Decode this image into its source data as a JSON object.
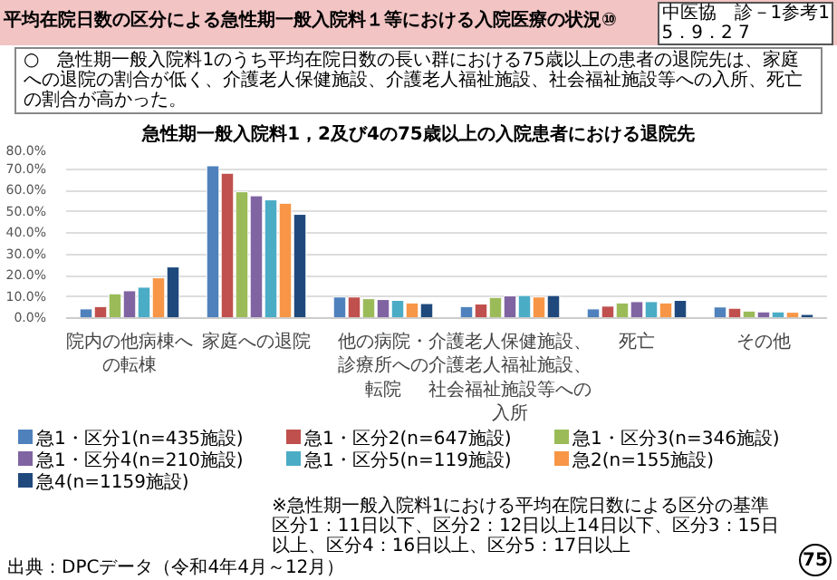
{
  "chart_data": {
    "type": "bar",
    "title": "平均在院日数の区分による急性期一般入院料１等における入院医療の状況⑩",
    "subtitle": "急性期一般入院料1，2及び4の75歳以上の入院患者における退院先",
    "annotations": [
      "中医協　診－1参考1\n5．9．2 7",
      "○　急性期一般入院料1のうち平均在院日数の長い群における75歳以上の患者の退院先は、家庭への退院の割合が低く、介護老人保健施設、介護老人福祉施設、社会福祉施設等への入所、死亡の割合が高かった。",
      "※急性期一般入院料1における平均在院日数による区分の基準",
      "区分1：11日以下、区分2：12日以上14日以下、区分3：15日以上、区分4：16日以上、区分5：17日以上",
      "出典：DPCデータ（令和4年4月～12月）",
      "75"
    ],
    "categories": [
      "院内の他病棟への転棟",
      "家庭への退院",
      "他の病院・診療所への転院",
      "介護老人保健施設、介護老人福祉施設、社会福祉施設等への入所",
      "死亡",
      "その他"
    ],
    "series": [
      {
        "name": "急1・区分1(n=435施設)",
        "color": "#4f81bd",
        "values": [
          4.3,
          71.5,
          9.9,
          5.4,
          4.3,
          5.2
        ]
      },
      {
        "name": "急1・区分2(n=647施設)",
        "color": "#c0504d",
        "values": [
          5.4,
          68.0,
          9.9,
          6.6,
          5.6,
          4.6
        ]
      },
      {
        "name": "急1・区分3(n=346施設)",
        "color": "#9bbb59",
        "values": [
          11.4,
          59.3,
          9.1,
          9.7,
          7.1,
          3.3
        ]
      },
      {
        "name": "急1・区分4(n=210施設)",
        "color": "#8064a2",
        "values": [
          12.8,
          57.4,
          8.7,
          10.4,
          7.7,
          2.9
        ]
      },
      {
        "name": "急1・区分5(n=119施設)",
        "color": "#4bacc6",
        "values": [
          14.5,
          55.5,
          8.3,
          10.6,
          7.7,
          2.9
        ]
      },
      {
        "name": "急2(n=155施設)",
        "color": "#f79646",
        "values": [
          18.9,
          53.9,
          7.1,
          9.9,
          7.1,
          2.7
        ]
      },
      {
        "name": "急4(n=1159施設)",
        "color": "#1f497d",
        "values": [
          24.0,
          48.7,
          6.8,
          10.6,
          8.3,
          1.7
        ]
      }
    ],
    "ylim": [
      0,
      80
    ],
    "yticks": [
      {
        "value": 0,
        "label": "0.0%"
      },
      {
        "value": 10,
        "label": "10.0%"
      },
      {
        "value": 20,
        "label": "20.0%"
      },
      {
        "value": 30,
        "label": "30.0%"
      },
      {
        "value": 40,
        "label": "40.0%"
      },
      {
        "value": 50,
        "label": "50.0%"
      },
      {
        "value": 60,
        "label": "60.0%"
      },
      {
        "value": 70,
        "label": "70.0%"
      },
      {
        "value": 80,
        "label": "80.0%"
      }
    ],
    "grid": "y",
    "legend": "bottom"
  }
}
